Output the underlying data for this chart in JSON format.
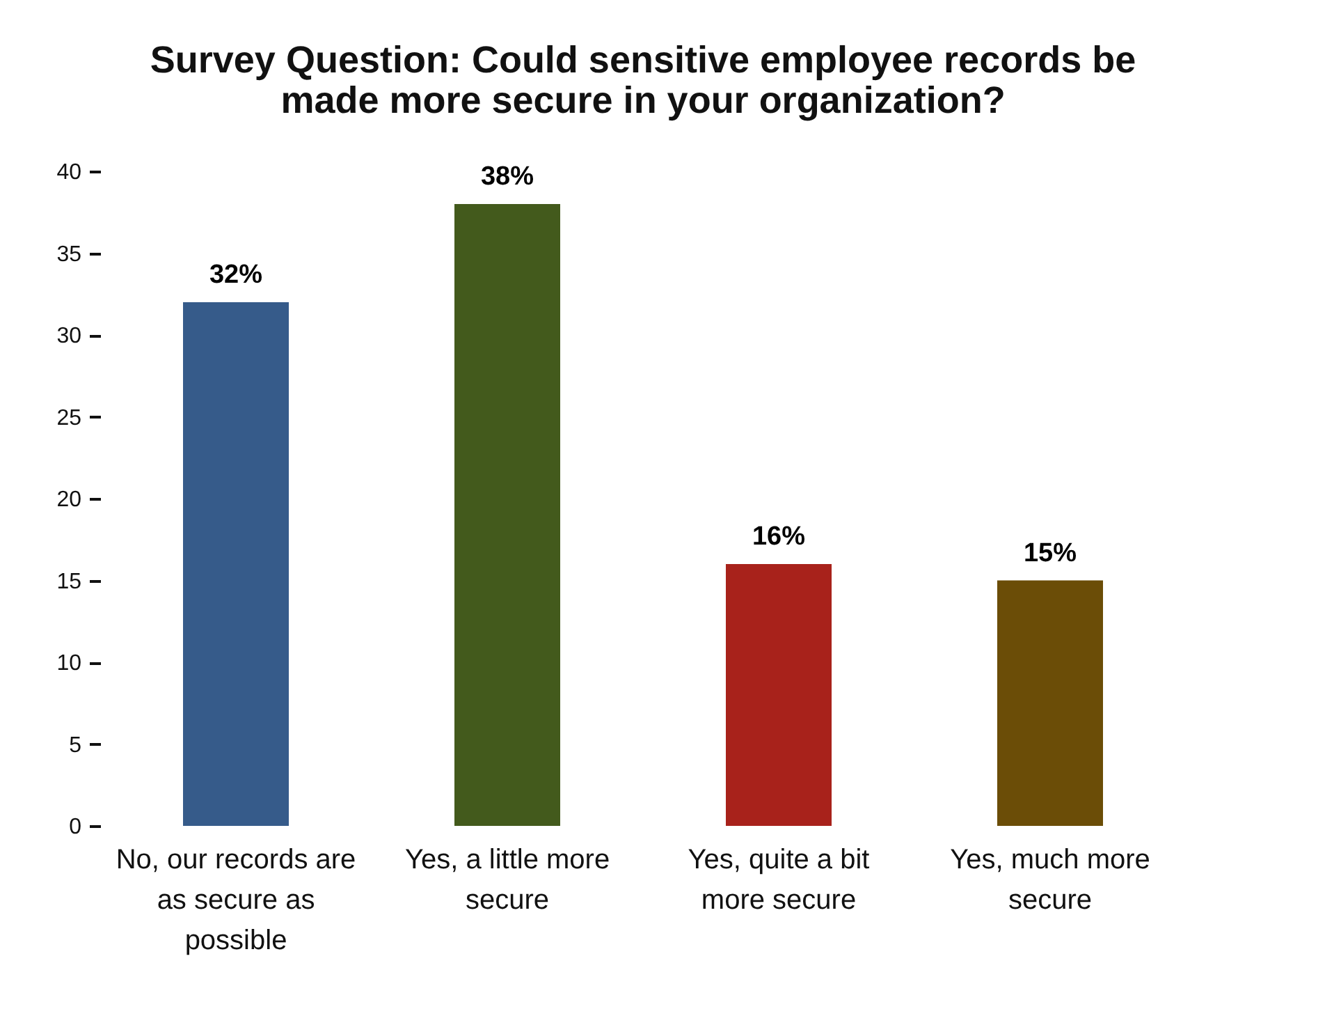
{
  "chart_data": {
    "type": "bar",
    "title": "Survey Question: Could sensitive employee records be made more secure in your organization?",
    "categories": [
      "No, our records are as secure as possible",
      "Yes, a little more secure",
      "Yes, quite a bit more secure",
      "Yes, much more secure"
    ],
    "values": [
      32,
      38,
      16,
      15
    ],
    "colors": [
      "#365b8a",
      "#435a1c",
      "#a8221b",
      "#6b4d07"
    ],
    "value_labels": [
      "32%",
      "38%",
      "16%",
      "15%"
    ],
    "ylim": [
      0,
      40
    ],
    "yticks": [
      0,
      5,
      10,
      15,
      20,
      25,
      30,
      35,
      40
    ],
    "grid": false
  }
}
